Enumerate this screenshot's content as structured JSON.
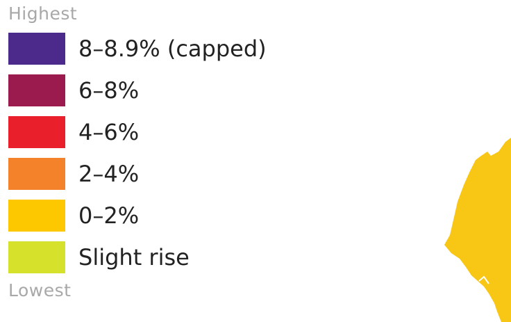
{
  "legend": {
    "highest_label": "Highest",
    "lowest_label": "Lowest",
    "items": [
      {
        "label": "8–8.9% (capped)",
        "color": "#4b2a8c"
      },
      {
        "label": "6–8%",
        "color": "#9b1b4f"
      },
      {
        "label": "4–6%",
        "color": "#ea1f2c"
      },
      {
        "label": "2–4%",
        "color": "#f4822a"
      },
      {
        "label": "0–2%",
        "color": "#fdc800"
      },
      {
        "label": "Slight rise",
        "color": "#d6e12b"
      }
    ]
  },
  "map": {
    "visible_region_color": "#f8c615"
  }
}
